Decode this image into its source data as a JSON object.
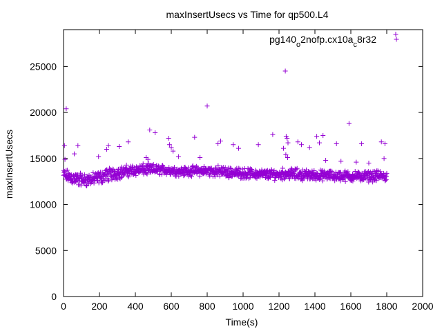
{
  "chart_data": {
    "type": "scatter",
    "title": "maxInsertUsecs vs Time for qp500.L4",
    "xlabel": "Time(s)",
    "ylabel": "maxInsertUsecs",
    "xlim": [
      0,
      2000
    ],
    "ylim": [
      0,
      29000
    ],
    "x_ticks": [
      0,
      200,
      400,
      600,
      800,
      1000,
      1200,
      1400,
      1600,
      1800,
      2000
    ],
    "y_ticks": [
      0,
      5000,
      10000,
      15000,
      20000,
      25000
    ],
    "grid": false,
    "legend_position": "top-right",
    "marker": "+",
    "color": "#9400d3",
    "series": [
      {
        "name": "pg140_o2nofp.cx10a_c8r32",
        "name_parts": [
          {
            "text": "pg140",
            "sub": false
          },
          {
            "text": "o",
            "sub": true
          },
          {
            "text": "2nofp.cx10a",
            "sub": false
          },
          {
            "text": "c",
            "sub": true
          },
          {
            "text": "8r32",
            "sub": false
          }
        ],
        "outliers": [
          {
            "x": 5,
            "y": 16400
          },
          {
            "x": 15,
            "y": 20400
          },
          {
            "x": 8,
            "y": 14900
          },
          {
            "x": 60,
            "y": 15500
          },
          {
            "x": 80,
            "y": 16400
          },
          {
            "x": 195,
            "y": 15200
          },
          {
            "x": 240,
            "y": 16000
          },
          {
            "x": 250,
            "y": 16400
          },
          {
            "x": 310,
            "y": 16300
          },
          {
            "x": 360,
            "y": 16800
          },
          {
            "x": 460,
            "y": 15100
          },
          {
            "x": 470,
            "y": 14900
          },
          {
            "x": 480,
            "y": 18100
          },
          {
            "x": 510,
            "y": 17800
          },
          {
            "x": 585,
            "y": 17200
          },
          {
            "x": 590,
            "y": 16500
          },
          {
            "x": 600,
            "y": 16200
          },
          {
            "x": 610,
            "y": 15800
          },
          {
            "x": 640,
            "y": 15200
          },
          {
            "x": 730,
            "y": 17300
          },
          {
            "x": 760,
            "y": 15100
          },
          {
            "x": 800,
            "y": 20700
          },
          {
            "x": 860,
            "y": 16600
          },
          {
            "x": 875,
            "y": 16900
          },
          {
            "x": 945,
            "y": 16500
          },
          {
            "x": 975,
            "y": 16100
          },
          {
            "x": 1085,
            "y": 16500
          },
          {
            "x": 1165,
            "y": 17600
          },
          {
            "x": 1225,
            "y": 16100
          },
          {
            "x": 1235,
            "y": 24500
          },
          {
            "x": 1240,
            "y": 17400
          },
          {
            "x": 1245,
            "y": 17200
          },
          {
            "x": 1250,
            "y": 16700
          },
          {
            "x": 1238,
            "y": 15400
          },
          {
            "x": 1248,
            "y": 15100
          },
          {
            "x": 1305,
            "y": 16800
          },
          {
            "x": 1325,
            "y": 16500
          },
          {
            "x": 1370,
            "y": 16200
          },
          {
            "x": 1410,
            "y": 17400
          },
          {
            "x": 1425,
            "y": 16700
          },
          {
            "x": 1445,
            "y": 17500
          },
          {
            "x": 1520,
            "y": 16600
          },
          {
            "x": 1590,
            "y": 18800
          },
          {
            "x": 1660,
            "y": 16600
          },
          {
            "x": 1770,
            "y": 16800
          },
          {
            "x": 1790,
            "y": 16600
          },
          {
            "x": 1785,
            "y": 15000
          },
          {
            "x": 1460,
            "y": 14800
          },
          {
            "x": 1545,
            "y": 14700
          },
          {
            "x": 1630,
            "y": 14600
          },
          {
            "x": 1700,
            "y": 14500
          },
          {
            "x": 1850,
            "y": 28500
          }
        ],
        "bulk_band": {
          "x_start": 0,
          "x_end": 1800,
          "samples": [
            {
              "x": 0,
              "y_low": 12400,
              "y_high": 14000
            },
            {
              "x": 60,
              "y_low": 11900,
              "y_high": 13700
            },
            {
              "x": 120,
              "y_low": 11800,
              "y_high": 13500
            },
            {
              "x": 180,
              "y_low": 12000,
              "y_high": 13600
            },
            {
              "x": 240,
              "y_low": 12300,
              "y_high": 14100
            },
            {
              "x": 320,
              "y_low": 12700,
              "y_high": 14300
            },
            {
              "x": 400,
              "y_low": 13000,
              "y_high": 14500
            },
            {
              "x": 480,
              "y_low": 13100,
              "y_high": 14500
            },
            {
              "x": 560,
              "y_low": 13100,
              "y_high": 14400
            },
            {
              "x": 650,
              "y_low": 13000,
              "y_high": 14200
            },
            {
              "x": 750,
              "y_low": 13000,
              "y_high": 14300
            },
            {
              "x": 850,
              "y_low": 12900,
              "y_high": 14300
            },
            {
              "x": 950,
              "y_low": 12800,
              "y_high": 14100
            },
            {
              "x": 1050,
              "y_low": 12700,
              "y_high": 14000
            },
            {
              "x": 1150,
              "y_low": 12600,
              "y_high": 13900
            },
            {
              "x": 1250,
              "y_low": 12600,
              "y_high": 14100
            },
            {
              "x": 1350,
              "y_low": 12500,
              "y_high": 13900
            },
            {
              "x": 1450,
              "y_low": 12500,
              "y_high": 13800
            },
            {
              "x": 1550,
              "y_low": 12400,
              "y_high": 13800
            },
            {
              "x": 1650,
              "y_low": 12400,
              "y_high": 13700
            },
            {
              "x": 1750,
              "y_low": 12400,
              "y_high": 13800
            },
            {
              "x": 1800,
              "y_low": 12300,
              "y_high": 13700
            }
          ]
        }
      }
    ]
  }
}
